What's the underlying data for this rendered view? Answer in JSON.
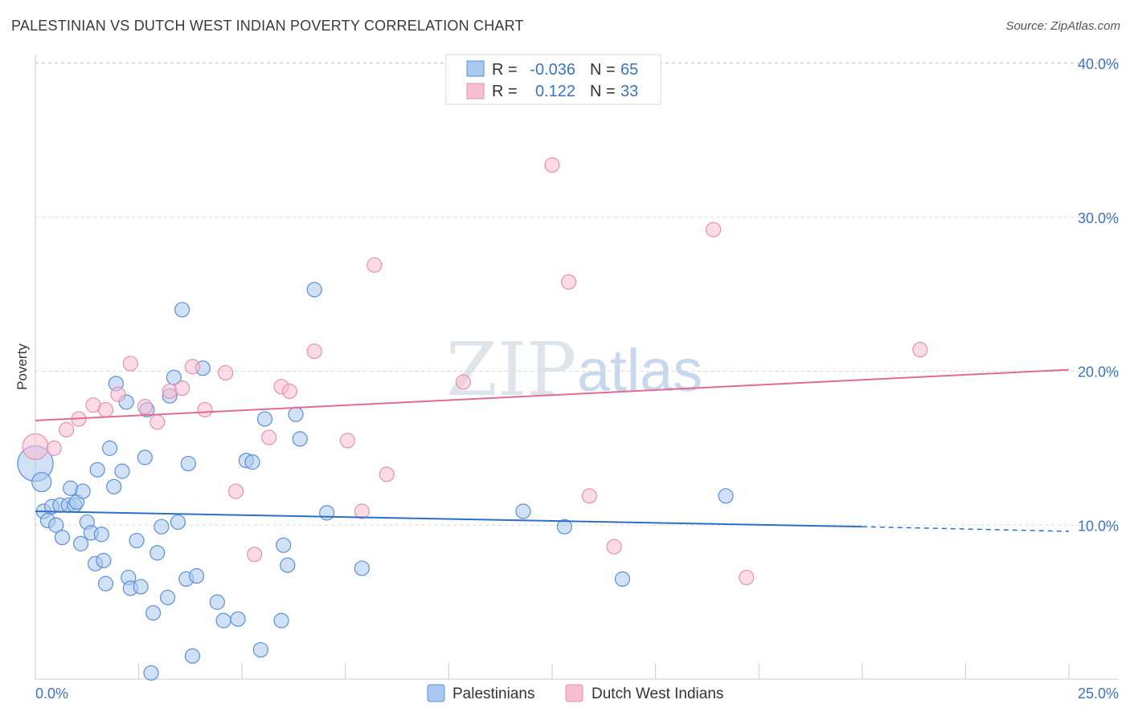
{
  "header": {
    "title": "PALESTINIAN VS DUTCH WEST INDIAN POVERTY CORRELATION CHART",
    "source": "Source: ZipAtlas.com"
  },
  "watermark": {
    "zip": "ZIP",
    "atlas": "atlas"
  },
  "colors": {
    "blue_fill": "#a9c8ef",
    "blue_stroke": "#5b90d6",
    "blue_line": "#2d6fc7",
    "pink_fill": "#f7bdd0",
    "pink_stroke": "#e791ad",
    "pink_line": "#e06b94",
    "grid": "#d8d8d8",
    "axis_text": "#3b74c4"
  },
  "legend": {
    "rows": [
      {
        "r_label": "R =",
        "r_value": "-0.036",
        "n_label": "N =",
        "n_value": "65"
      },
      {
        "r_label": "R =",
        "r_value": "0.122",
        "n_label": "N =",
        "n_value": "33"
      }
    ]
  },
  "chart_data": {
    "type": "scatter",
    "title": "PALESTINIAN VS DUTCH WEST INDIAN POVERTY CORRELATION CHART",
    "xlabel": "",
    "ylabel": "Poverty",
    "xlim": [
      0,
      25
    ],
    "ylim": [
      0,
      40
    ],
    "x_tick_labels": [
      "0.0%",
      "25.0%"
    ],
    "y_ticks": [
      10,
      20,
      30,
      40
    ],
    "y_tick_labels": [
      "10.0%",
      "20.0%",
      "30.0%",
      "40.0%"
    ],
    "grid": true,
    "series": [
      {
        "name": "Palestinians",
        "r": -0.036,
        "n": 65,
        "trend": {
          "x0": 0,
          "y0": 10.9,
          "x1": 20,
          "y1": 9.9,
          "dashed_to_x": 25,
          "dashed_to_y": 9.6
        },
        "points": [
          [
            0.0,
            14.0,
            22
          ],
          [
            0.15,
            12.8,
            12
          ],
          [
            0.2,
            10.9,
            9
          ],
          [
            0.3,
            10.3,
            9
          ],
          [
            0.4,
            11.2,
            9
          ],
          [
            0.5,
            10.0,
            9
          ],
          [
            0.6,
            11.3,
            9
          ],
          [
            0.65,
            9.2,
            9
          ],
          [
            0.8,
            11.3,
            9
          ],
          [
            0.85,
            12.4,
            9
          ],
          [
            0.95,
            11.3,
            9
          ],
          [
            1.0,
            11.5,
            9
          ],
          [
            1.1,
            8.8,
            9
          ],
          [
            1.15,
            12.2,
            9
          ],
          [
            1.25,
            10.2,
            9
          ],
          [
            1.35,
            9.5,
            9
          ],
          [
            1.45,
            7.5,
            9
          ],
          [
            1.5,
            13.6,
            9
          ],
          [
            1.6,
            9.4,
            9
          ],
          [
            1.65,
            7.7,
            9
          ],
          [
            1.7,
            6.2,
            9
          ],
          [
            1.8,
            15.0,
            9
          ],
          [
            1.9,
            12.5,
            9
          ],
          [
            1.95,
            19.2,
            9
          ],
          [
            2.1,
            13.5,
            9
          ],
          [
            2.2,
            18.0,
            9
          ],
          [
            2.25,
            6.6,
            9
          ],
          [
            2.3,
            5.9,
            9
          ],
          [
            2.45,
            9.0,
            9
          ],
          [
            2.55,
            6.0,
            9
          ],
          [
            2.65,
            14.4,
            9
          ],
          [
            2.7,
            17.5,
            9
          ],
          [
            2.8,
            0.4,
            9
          ],
          [
            2.85,
            4.3,
            9
          ],
          [
            2.95,
            8.2,
            9
          ],
          [
            3.05,
            9.9,
            9
          ],
          [
            3.2,
            5.3,
            9
          ],
          [
            3.25,
            18.4,
            9
          ],
          [
            3.35,
            19.6,
            9
          ],
          [
            3.45,
            10.2,
            9
          ],
          [
            3.55,
            24.0,
            9
          ],
          [
            3.65,
            6.5,
            9
          ],
          [
            3.7,
            14.0,
            9
          ],
          [
            3.8,
            1.5,
            9
          ],
          [
            3.9,
            6.7,
            9
          ],
          [
            4.05,
            20.2,
            9
          ],
          [
            4.4,
            5.0,
            9
          ],
          [
            4.55,
            3.8,
            9
          ],
          [
            4.9,
            3.9,
            9
          ],
          [
            5.1,
            14.2,
            9
          ],
          [
            5.25,
            14.1,
            9
          ],
          [
            5.45,
            1.9,
            9
          ],
          [
            5.55,
            16.9,
            9
          ],
          [
            5.95,
            3.8,
            9
          ],
          [
            6.0,
            8.7,
            9
          ],
          [
            6.1,
            7.4,
            9
          ],
          [
            6.3,
            17.2,
            9
          ],
          [
            6.4,
            15.6,
            9
          ],
          [
            6.75,
            25.3,
            9
          ],
          [
            7.05,
            10.8,
            9
          ],
          [
            7.9,
            7.2,
            9
          ],
          [
            11.8,
            10.9,
            9
          ],
          [
            12.8,
            9.9,
            9
          ],
          [
            14.2,
            6.5,
            9
          ],
          [
            16.7,
            11.9,
            9
          ]
        ]
      },
      {
        "name": "Dutch West Indians",
        "r": 0.122,
        "n": 33,
        "trend": {
          "x0": 0,
          "y0": 16.8,
          "x1": 25,
          "y1": 20.1
        },
        "points": [
          [
            0.0,
            15.1,
            16
          ],
          [
            0.45,
            15.0,
            9
          ],
          [
            0.75,
            16.2,
            9
          ],
          [
            1.05,
            16.9,
            9
          ],
          [
            1.4,
            17.8,
            9
          ],
          [
            1.7,
            17.5,
            9
          ],
          [
            2.0,
            18.5,
            9
          ],
          [
            2.3,
            20.5,
            9
          ],
          [
            2.65,
            17.7,
            9
          ],
          [
            2.95,
            16.7,
            9
          ],
          [
            3.25,
            18.7,
            9
          ],
          [
            3.55,
            18.9,
            9
          ],
          [
            3.8,
            20.3,
            9
          ],
          [
            4.1,
            17.5,
            9
          ],
          [
            4.6,
            19.9,
            9
          ],
          [
            4.85,
            12.2,
            9
          ],
          [
            5.3,
            8.1,
            9
          ],
          [
            5.65,
            15.7,
            9
          ],
          [
            5.95,
            19.0,
            9
          ],
          [
            6.15,
            18.7,
            9
          ],
          [
            6.75,
            21.3,
            9
          ],
          [
            7.55,
            15.5,
            9
          ],
          [
            7.9,
            10.9,
            9
          ],
          [
            8.2,
            26.9,
            9
          ],
          [
            8.5,
            13.3,
            9
          ],
          [
            10.35,
            19.3,
            9
          ],
          [
            12.5,
            33.4,
            9
          ],
          [
            12.9,
            25.8,
            9
          ],
          [
            13.4,
            11.9,
            9
          ],
          [
            14.0,
            8.6,
            9
          ],
          [
            16.4,
            29.2,
            9
          ],
          [
            17.2,
            6.6,
            9
          ],
          [
            21.4,
            21.4,
            9
          ]
        ]
      }
    ]
  }
}
